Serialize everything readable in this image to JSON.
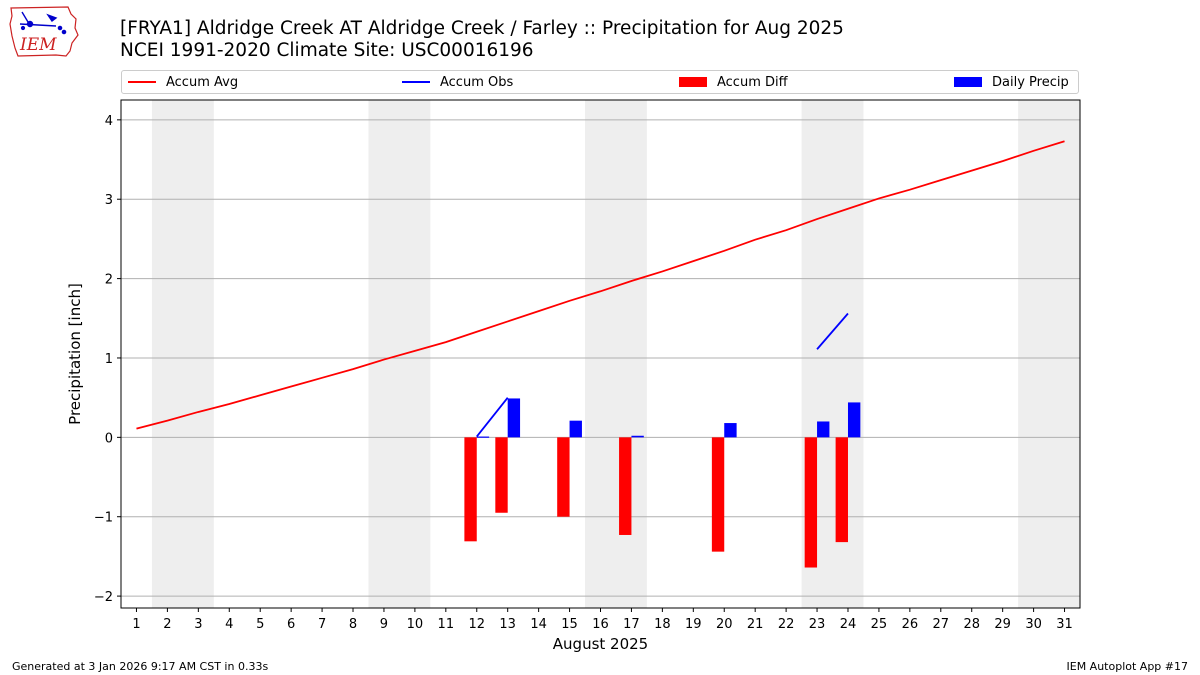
{
  "header": {
    "title_line1": "[FRYA1] Aldridge Creek  AT Aldridge Creek / Farley :: Precipitation for Aug 2025",
    "title_line2": "NCEI 1991-2020 Climate Site: USC00016196"
  },
  "logo": {
    "text": "IEM",
    "icon": "iem-iowa-logo-icon"
  },
  "footer": {
    "left": "Generated at 3 Jan 2026 9:17 AM CST in 0.33s",
    "right": "IEM Autoplot App #17"
  },
  "colors": {
    "avg": "#ff0000",
    "obs": "#0000ff",
    "diff": "#ff0000",
    "daily": "#0000ff",
    "shade": "#eeeeee",
    "grid": "#b0b0b0"
  },
  "legend": [
    {
      "label": "Accum Avg",
      "kind": "line",
      "color": "#ff0000"
    },
    {
      "label": "Accum Obs",
      "kind": "line",
      "color": "#0000ff"
    },
    {
      "label": "Accum Diff",
      "kind": "box",
      "color": "#ff0000"
    },
    {
      "label": "Daily Precip",
      "kind": "box",
      "color": "#0000ff"
    }
  ],
  "chart_data": {
    "type": "bar",
    "xlabel": "August 2025",
    "ylabel": "Precipitation [inch]",
    "ylim": [
      -2.15,
      4.25
    ],
    "xlim": [
      0.5,
      31.5
    ],
    "grid": "horizontal",
    "legend_position": "top",
    "x": [
      1,
      2,
      3,
      4,
      5,
      6,
      7,
      8,
      9,
      10,
      11,
      12,
      13,
      14,
      15,
      16,
      17,
      18,
      19,
      20,
      21,
      22,
      23,
      24,
      25,
      26,
      27,
      28,
      29,
      30,
      31
    ],
    "yticks": [
      -2,
      -1,
      0,
      1,
      2,
      3,
      4
    ],
    "weekend_shading": [
      [
        2,
        3
      ],
      [
        9,
        10
      ],
      [
        16,
        17
      ],
      [
        23,
        24
      ],
      [
        30,
        31
      ]
    ],
    "series": [
      {
        "name": "Accum Avg",
        "type": "line",
        "values": [
          0.11,
          0.21,
          0.32,
          0.42,
          0.53,
          0.64,
          0.75,
          0.86,
          0.98,
          1.09,
          1.2,
          1.33,
          1.46,
          1.59,
          1.72,
          1.84,
          1.97,
          2.09,
          2.22,
          2.35,
          2.49,
          2.61,
          2.75,
          2.88,
          3.01,
          3.12,
          3.24,
          3.36,
          3.48,
          3.61,
          3.73
        ]
      },
      {
        "name": "Accum Obs",
        "type": "line",
        "values": [
          null,
          null,
          null,
          null,
          null,
          null,
          null,
          null,
          null,
          null,
          null,
          0.01,
          0.5,
          null,
          null,
          null,
          null,
          null,
          null,
          null,
          null,
          null,
          1.11,
          1.56,
          null,
          null,
          null,
          null,
          null,
          null,
          null
        ]
      },
      {
        "name": "Accum Diff",
        "type": "bar",
        "values": [
          null,
          null,
          null,
          null,
          null,
          null,
          null,
          null,
          null,
          null,
          null,
          -1.31,
          -0.95,
          null,
          -1.0,
          null,
          -1.23,
          null,
          null,
          -1.44,
          null,
          null,
          -1.64,
          -1.32,
          null,
          null,
          null,
          null,
          null,
          null,
          null
        ]
      },
      {
        "name": "Daily Precip",
        "type": "bar",
        "values": [
          null,
          null,
          null,
          null,
          null,
          null,
          null,
          null,
          null,
          null,
          null,
          0.01,
          0.49,
          null,
          0.21,
          null,
          0.02,
          null,
          null,
          0.18,
          null,
          null,
          0.2,
          0.44,
          null,
          null,
          null,
          null,
          null,
          null,
          null
        ]
      }
    ]
  }
}
